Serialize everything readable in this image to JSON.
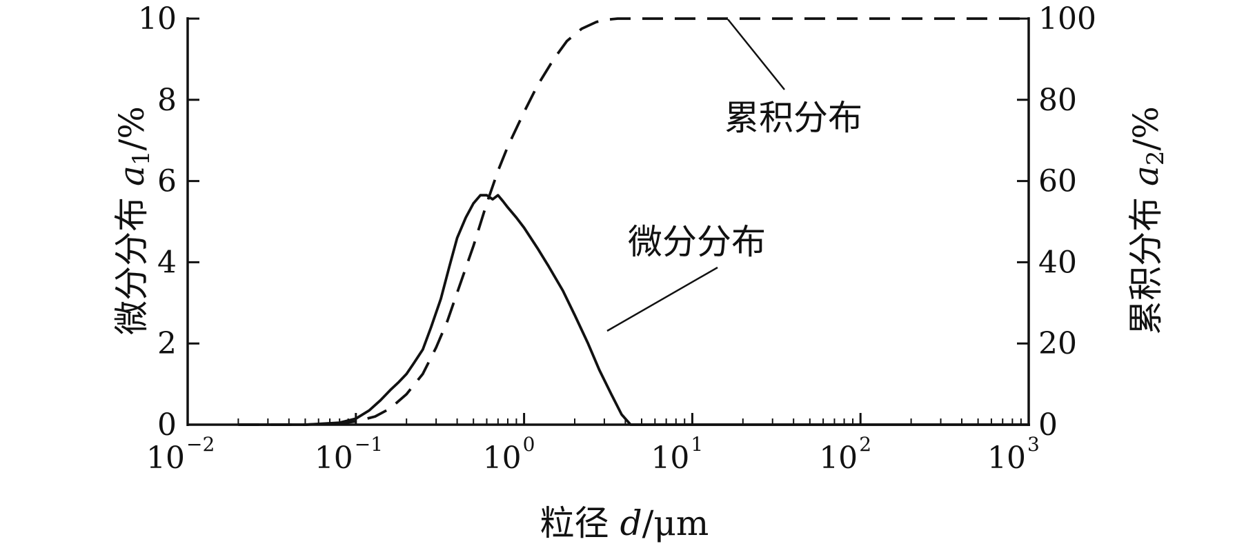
{
  "chart_data": {
    "type": "line",
    "x_scale": "log",
    "xlim": [
      0.01,
      1000
    ],
    "ylim_left": [
      0,
      10
    ],
    "ylim_right": [
      0,
      100
    ],
    "grid": false,
    "xlabel": {
      "prefix": "粒径 ",
      "var": "d",
      "suffix": "/μm"
    },
    "ylabel_left": {
      "prefix": "微分分布 ",
      "var": "a",
      "sub": "1",
      "suffix": "/%"
    },
    "ylabel_right": {
      "prefix": "累积分布 ",
      "var": "a",
      "sub": "2",
      "suffix": "/%"
    },
    "x_ticks": [
      {
        "base": "10",
        "exp": "−2",
        "value": 0.01
      },
      {
        "base": "10",
        "exp": "−1",
        "value": 0.1
      },
      {
        "base": "10",
        "exp": "0",
        "value": 1
      },
      {
        "base": "10",
        "exp": "1",
        "value": 10
      },
      {
        "base": "10",
        "exp": "2",
        "value": 100
      },
      {
        "base": "10",
        "exp": "3",
        "value": 1000
      }
    ],
    "y_ticks_left": [
      "0",
      "2",
      "4",
      "6",
      "8",
      "10"
    ],
    "y_ticks_right": [
      "0",
      "20",
      "40",
      "60",
      "80",
      "100"
    ],
    "series": [
      {
        "name": "微分分布",
        "axis": "left",
        "style": "solid",
        "x": [
          0.02,
          0.05,
          0.08,
          0.1,
          0.12,
          0.14,
          0.16,
          0.18,
          0.2,
          0.22,
          0.25,
          0.28,
          0.32,
          0.36,
          0.4,
          0.45,
          0.5,
          0.55,
          0.6,
          0.65,
          0.7,
          0.75,
          0.8,
          0.9,
          1.0,
          1.2,
          1.4,
          1.7,
          2.0,
          2.4,
          2.8,
          3.3,
          3.8,
          4.3,
          4.6,
          10,
          100,
          1000
        ],
        "y": [
          0,
          0,
          0.05,
          0.15,
          0.35,
          0.6,
          0.85,
          1.05,
          1.25,
          1.5,
          1.85,
          2.4,
          3.1,
          3.9,
          4.6,
          5.1,
          5.45,
          5.65,
          5.65,
          5.55,
          5.65,
          5.5,
          5.35,
          5.1,
          4.85,
          4.35,
          3.9,
          3.3,
          2.7,
          2.0,
          1.35,
          0.75,
          0.25,
          0.0,
          0,
          0,
          0,
          0
        ]
      },
      {
        "name": "累积分布",
        "axis": "right",
        "style": "dashed",
        "x": [
          0.02,
          0.05,
          0.08,
          0.1,
          0.13,
          0.16,
          0.2,
          0.25,
          0.3,
          0.35,
          0.4,
          0.5,
          0.6,
          0.7,
          0.8,
          1.0,
          1.2,
          1.5,
          1.8,
          2.2,
          2.7,
          3.2,
          3.6,
          4.0,
          10,
          100,
          1000
        ],
        "y": [
          0,
          0,
          0.3,
          0.8,
          2.0,
          4.0,
          7.5,
          12.5,
          19.0,
          25.5,
          32.5,
          44.0,
          54.5,
          62.5,
          68.5,
          77.0,
          83.5,
          90.0,
          94.5,
          97.5,
          99.2,
          99.8,
          100,
          100,
          100,
          100,
          100
        ]
      }
    ],
    "annotations": [
      {
        "text": "累积分布",
        "series": "累积分布"
      },
      {
        "text": "微分分布",
        "series": "微分分布"
      }
    ]
  }
}
